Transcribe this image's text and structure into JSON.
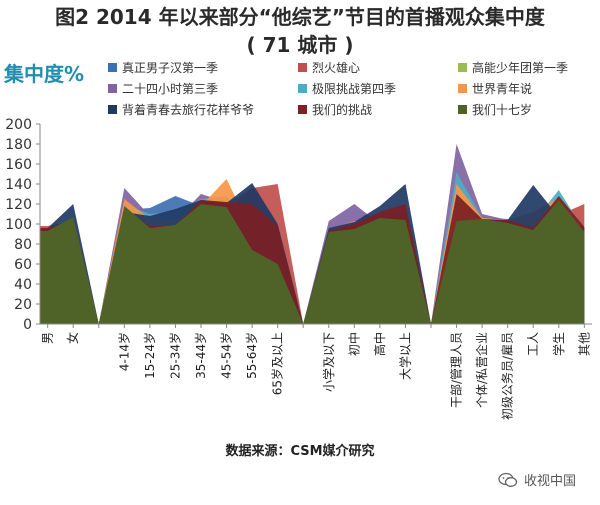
{
  "header": {
    "title_line1": "图2 2014 年以来部分“他综艺”节目的首播观众集中度",
    "title_line2": "( 71 城市 )",
    "y_unit": "集中度%"
  },
  "footer": {
    "source": "数据来源：CSM媒介研究",
    "watermark": "收视中国",
    "watermark_icon": "wechat-icon"
  },
  "chart_data": {
    "type": "area",
    "ylim": [
      0,
      200
    ],
    "yticks": [
      0,
      20,
      40,
      60,
      80,
      100,
      120,
      140,
      160,
      180,
      200
    ],
    "grid": false,
    "legend_position": "top",
    "groups": [
      {
        "categories": [
          "男",
          "女"
        ]
      },
      {
        "categories": [
          "4-14岁",
          "15-24岁",
          "25-34岁",
          "35-44岁",
          "45-54岁",
          "55-64岁",
          "65岁及以上"
        ]
      },
      {
        "categories": [
          "小学及以下",
          "初中",
          "高中",
          "大学以上"
        ]
      },
      {
        "categories": [
          "干部/管理人员",
          "个体/私营企业",
          "初级公务员/雇员",
          "工人",
          "学生",
          "其他"
        ]
      }
    ],
    "series": [
      {
        "name": "真正男子汉第一季",
        "color": "#3f6fb0",
        "values": [
          [
            94,
            106
          ],
          [
            114,
            116,
            128,
            118,
            121,
            109,
            96
          ],
          [
            95,
            103,
            105,
            108
          ],
          [
            118,
            107,
            105,
            100,
            106,
            96
          ]
        ]
      },
      {
        "name": "烈火雄心",
        "color": "#c0504d",
        "values": [
          [
            98,
            103
          ],
          [
            98,
            110,
            98,
            119,
            118,
            136,
            140
          ],
          [
            95,
            97,
            110,
            112
          ],
          [
            100,
            105,
            103,
            96,
            109,
            120
          ]
        ]
      },
      {
        "name": "高能少年团第一季",
        "color": "#9bbb59",
        "values": [
          [
            95,
            102
          ],
          [
            118,
            96,
            102,
            121,
            125,
            100,
            85
          ],
          [
            95,
            98,
            106,
            107
          ],
          [
            124,
            107,
            104,
            98,
            118,
            95
          ]
        ]
      },
      {
        "name": "二十四小时第三季",
        "color": "#8064a2",
        "values": [
          [
            95,
            104
          ],
          [
            136,
            108,
            104,
            130,
            122,
            90,
            72
          ],
          [
            103,
            120,
            100,
            102
          ],
          [
            180,
            110,
            104,
            96,
            124,
            94
          ]
        ]
      },
      {
        "name": "极限挑战第四季",
        "color": "#4bacc6",
        "values": [
          [
            94,
            105
          ],
          [
            120,
            110,
            112,
            125,
            128,
            96,
            80
          ],
          [
            93,
            102,
            108,
            106
          ],
          [
            152,
            106,
            104,
            102,
            134,
            93
          ]
        ]
      },
      {
        "name": "世界青年说",
        "color": "#f79646",
        "values": [
          [
            95,
            104
          ],
          [
            125,
            105,
            104,
            118,
            145,
            92,
            75
          ],
          [
            95,
            103,
            104,
            105
          ],
          [
            140,
            106,
            104,
            112,
            126,
            94
          ]
        ]
      },
      {
        "name": "背着青春去旅行花样爷爷",
        "color": "#1f3864",
        "values": [
          [
            96,
            120
          ],
          [
            112,
            108,
            115,
            124,
            121,
            141,
            100
          ],
          [
            96,
            102,
            118,
            140
          ],
          [
            102,
            104,
            104,
            139,
            107,
            96
          ]
        ]
      },
      {
        "name": "我们的挑战",
        "color": "#7b2025",
        "values": [
          [
            96,
            103
          ],
          [
            115,
            98,
            98,
            124,
            122,
            120,
            98
          ],
          [
            93,
            100,
            112,
            120
          ],
          [
            130,
            105,
            104,
            96,
            128,
            97
          ]
        ]
      },
      {
        "name": "我们十七岁",
        "color": "#4f6228",
        "values": [
          [
            93,
            107
          ],
          [
            118,
            96,
            99,
            120,
            117,
            74,
            60
          ],
          [
            92,
            95,
            106,
            104
          ],
          [
            103,
            105,
            101,
            94,
            124,
            92
          ]
        ]
      }
    ]
  }
}
